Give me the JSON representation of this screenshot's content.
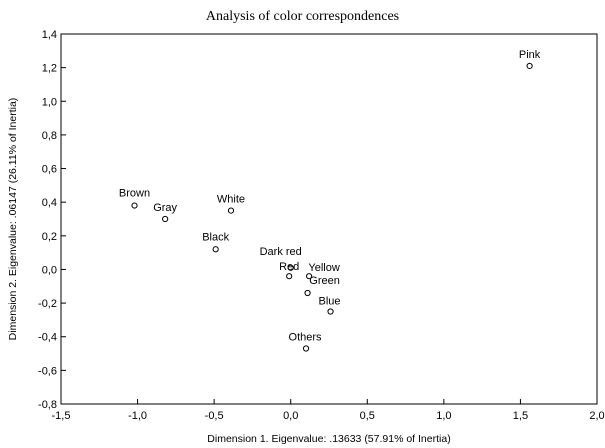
{
  "chart_data": {
    "type": "scatter",
    "title": "Analysis of color correspondences",
    "xlabel": "Dimension 1. Eigenvalue: .13633 (57.91% of Inertia)",
    "ylabel": "Dimension 2. Eigenvalue: .06147 (26.11% of Inertia)",
    "xlim": [
      -1.5,
      2.0
    ],
    "ylim": [
      -0.8,
      1.4
    ],
    "xticks": [
      "-1,5",
      "-1,0",
      "-0,5",
      "0,0",
      "0,5",
      "1,0",
      "1,5",
      "2,0"
    ],
    "yticks": [
      "1,4",
      "1,2",
      "1,0",
      "0,8",
      "0,6",
      "0,4",
      "0,2",
      "0,0",
      "-0,2",
      "-0,4",
      "-0,6",
      "-0,8"
    ],
    "grid": false,
    "marker": "open-circle",
    "points": [
      {
        "label": "Pink",
        "x": 1.56,
        "y": 1.21
      },
      {
        "label": "Brown",
        "x": -1.02,
        "y": 0.38
      },
      {
        "label": "Gray",
        "x": -0.82,
        "y": 0.3
      },
      {
        "label": "White",
        "x": -0.39,
        "y": 0.35
      },
      {
        "label": "Black",
        "x": -0.49,
        "y": 0.12
      },
      {
        "label": "Dark red",
        "x": 0.0,
        "y": 0.01
      },
      {
        "label": "Red",
        "x": -0.01,
        "y": -0.04
      },
      {
        "label": "Yellow",
        "x": 0.12,
        "y": -0.04
      },
      {
        "label": "Green",
        "x": 0.11,
        "y": -0.14
      },
      {
        "label": "Blue",
        "x": 0.26,
        "y": -0.25
      },
      {
        "label": "Others",
        "x": 0.1,
        "y": -0.47
      }
    ]
  }
}
